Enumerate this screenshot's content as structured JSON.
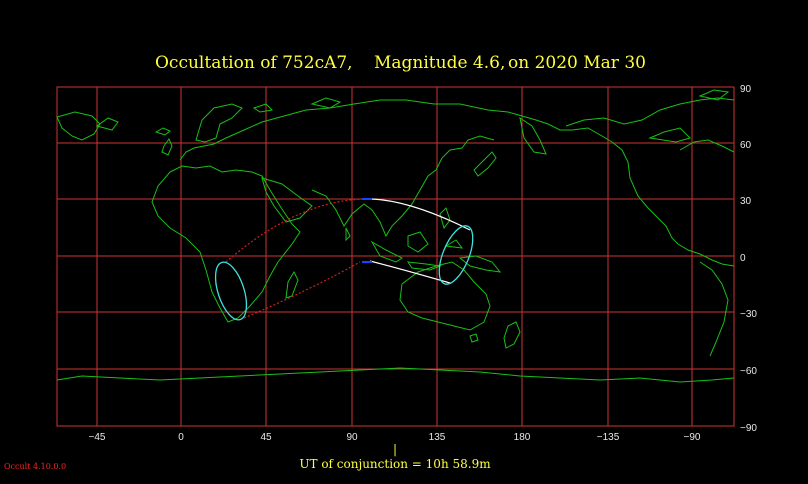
{
  "title": {
    "object": "Occultation  of  752cA7,",
    "magnitude": "Magnitude 4.6,",
    "date": "on  2020 Mar 30"
  },
  "map": {
    "lon_ticks": [
      "−45",
      "0",
      "45",
      "90",
      "135",
      "180",
      "−135",
      "−90"
    ],
    "lat_ticks": [
      "90",
      "60",
      "30",
      "0",
      "−30",
      "−60",
      "−90"
    ],
    "grid_color": "#cc3333",
    "coast_color": "#18c018",
    "path_color": "#ffffff",
    "dotted_path_color": "#cc2020",
    "limb_ellipse_color": "#40e0e0",
    "conjunction_marker": "|"
  },
  "footer": {
    "conjunction": "UT of conjunction = 10h 58.9m",
    "version": "Occult 4.10.0.0"
  }
}
